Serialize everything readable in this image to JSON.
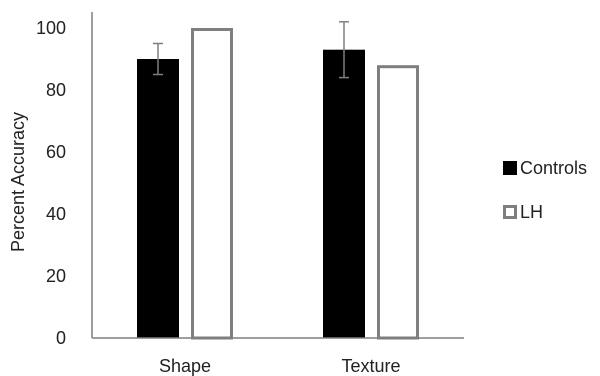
{
  "chart_data": {
    "type": "bar",
    "categories": [
      "Shape",
      "Texture"
    ],
    "series": [
      {
        "name": "Controls",
        "values": [
          90,
          93
        ],
        "error": [
          5,
          9
        ],
        "color": "#000000",
        "fill": "#000000",
        "style": "filled"
      },
      {
        "name": "LH",
        "values": [
          100,
          88
        ],
        "error": [
          null,
          null
        ],
        "color": "#7f7f7f",
        "fill": "#ffffff",
        "style": "outline"
      }
    ],
    "title": "",
    "xlabel": "",
    "ylabel": "Percent Accuracy",
    "ylim": [
      0,
      100
    ],
    "yticks": [
      0,
      20,
      40,
      60,
      80,
      100
    ],
    "grid": false,
    "legend_position": "right",
    "axis_color": "#7f7f7f",
    "error_bar_color": "#7f7f7f"
  }
}
